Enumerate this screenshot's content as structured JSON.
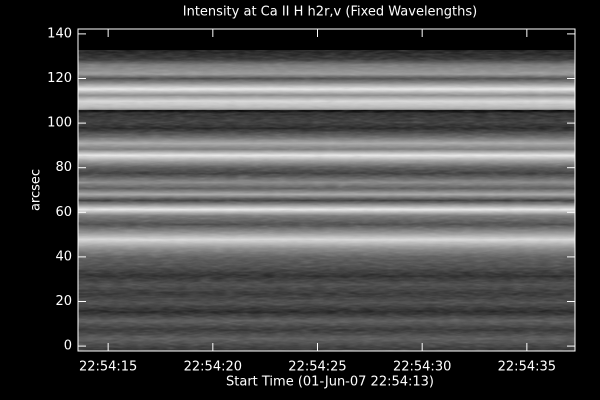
{
  "chart_data": {
    "type": "image",
    "title": "Intensity at Ca II H h2r,v (Fixed Wavelengths)",
    "x_label": "Start Time (01-Jun-07 22:54:13)",
    "y_label": "arcsec",
    "xlim": [
      0.56,
      24.3
    ],
    "xticks": [
      {
        "value": 2,
        "label": "22:54:15"
      },
      {
        "value": 7,
        "label": "22:54:20"
      },
      {
        "value": 12,
        "label": "22:54:25"
      },
      {
        "value": 17,
        "label": "22:54:30"
      },
      {
        "value": 22,
        "label": "22:54:35"
      }
    ],
    "ylim": [
      -2.2,
      142.2
    ],
    "yticks": [
      0,
      20,
      40,
      60,
      80,
      100,
      120,
      140
    ]
  }
}
